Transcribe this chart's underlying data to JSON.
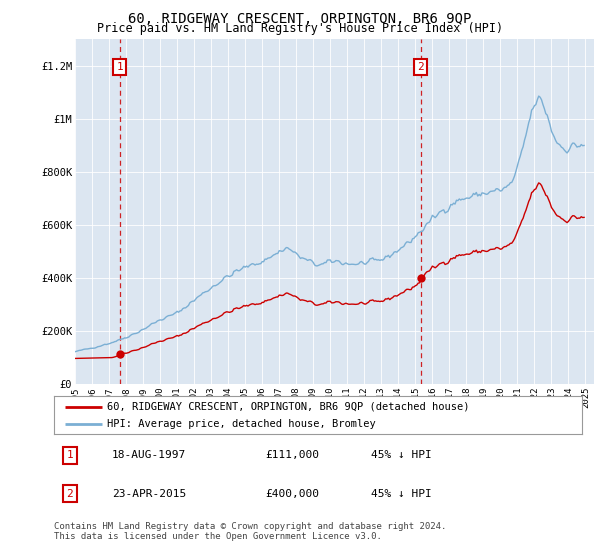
{
  "title": "60, RIDGEWAY CRESCENT, ORPINGTON, BR6 9QP",
  "subtitle": "Price paid vs. HM Land Registry's House Price Index (HPI)",
  "sale1_date": 1997.63,
  "sale1_price": 111000,
  "sale2_date": 2015.31,
  "sale2_price": 400000,
  "hpi_color": "#7bafd4",
  "price_color": "#cc0000",
  "bg_color": "#dce6f1",
  "grid_color": "#ffffff",
  "ylabel_ticks": [
    0,
    200000,
    400000,
    600000,
    800000,
    1000000,
    1200000
  ],
  "ylabel_labels": [
    "£0",
    "£200K",
    "£400K",
    "£600K",
    "£800K",
    "£1M",
    "£1.2M"
  ],
  "xmin": 1995.0,
  "xmax": 2025.5,
  "ymin": 0,
  "ymax": 1300000,
  "legend_label_red": "60, RIDGEWAY CRESCENT, ORPINGTON, BR6 9QP (detached house)",
  "legend_label_blue": "HPI: Average price, detached house, Bromley",
  "footnote": "Contains HM Land Registry data © Crown copyright and database right 2024.\nThis data is licensed under the Open Government Licence v3.0.",
  "sale1_label": "1",
  "sale2_label": "2",
  "info1": [
    "1",
    "18-AUG-1997",
    "£111,000",
    "45% ↓ HPI"
  ],
  "info2": [
    "2",
    "23-APR-2015",
    "£400,000",
    "45% ↓ HPI"
  ]
}
